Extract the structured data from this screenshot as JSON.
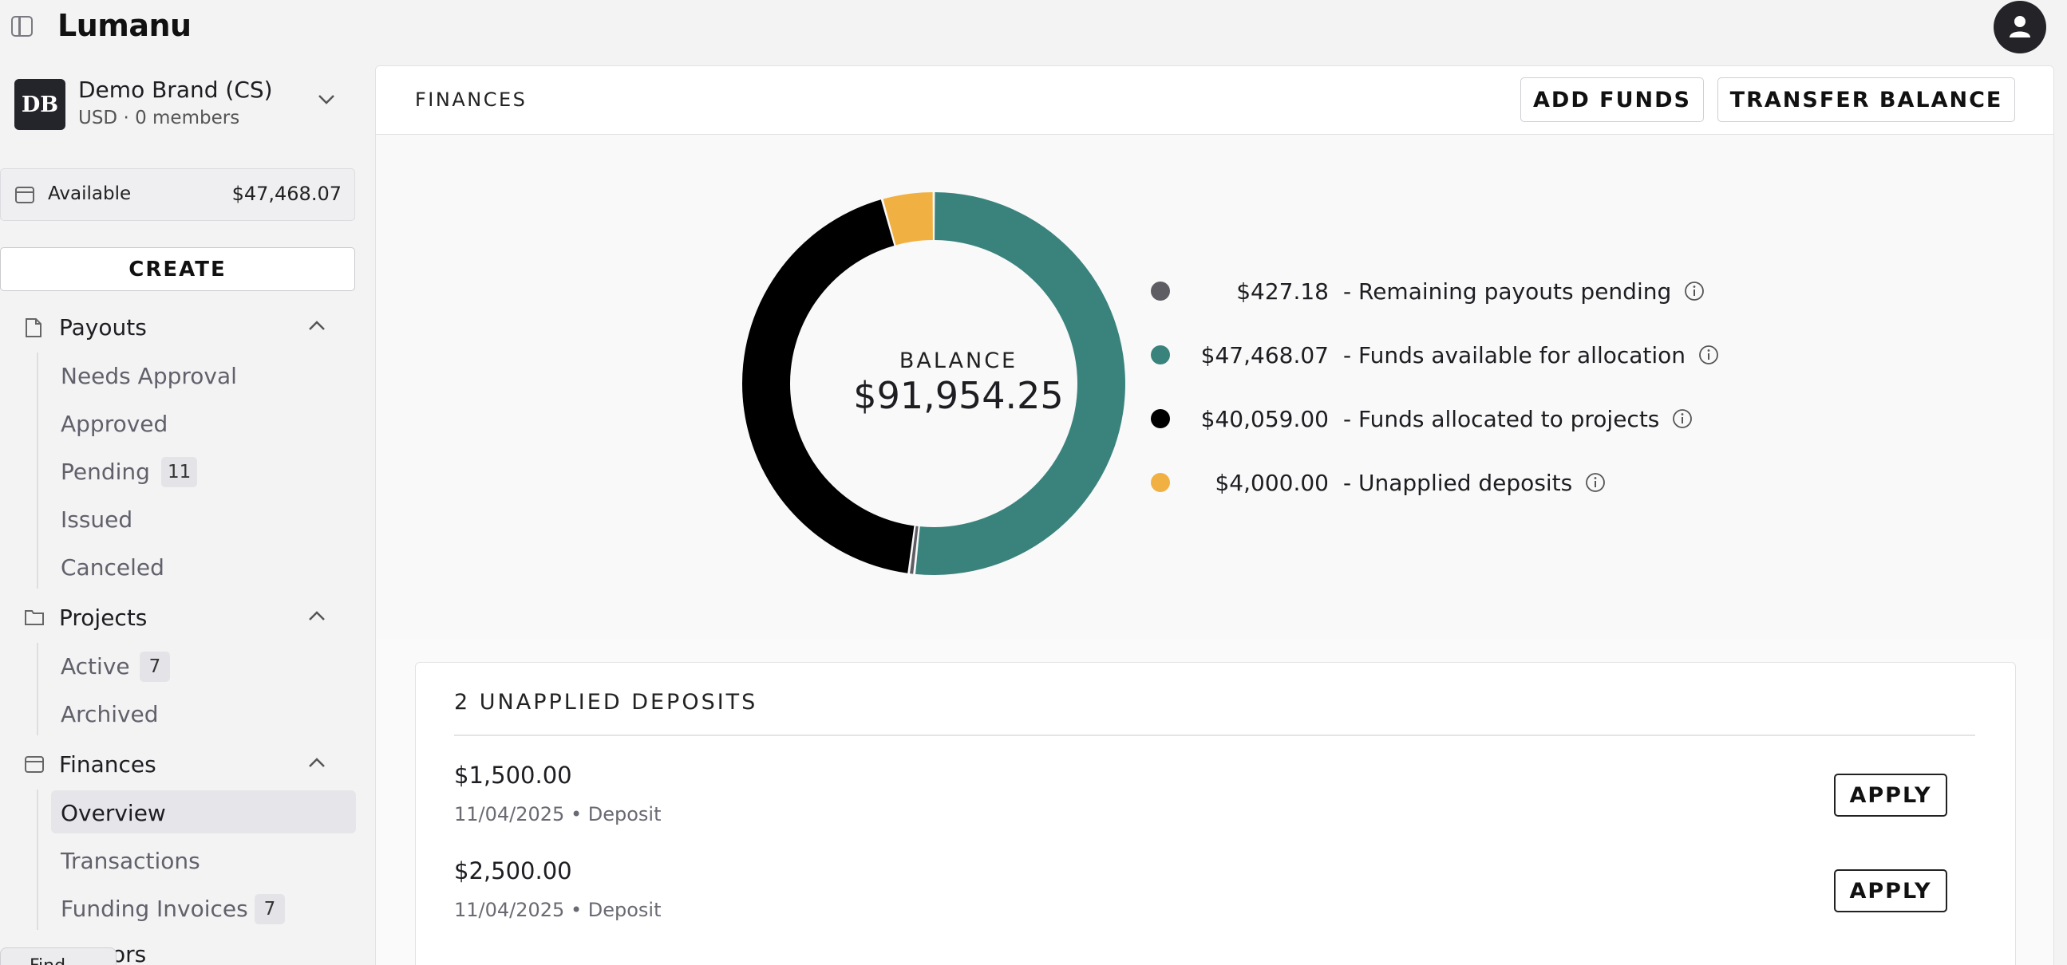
{
  "app": {
    "logo": "Lumanu"
  },
  "brand": {
    "initials": "DB",
    "name": "Demo Brand (CS)",
    "subtitle": "USD · 0 members"
  },
  "balance_summary": {
    "label": "Available",
    "amount": "$47,468.07"
  },
  "create_label": "CREATE",
  "sidebar": {
    "payouts": {
      "label": "Payouts",
      "items": [
        {
          "label": "Needs Approval"
        },
        {
          "label": "Approved"
        },
        {
          "label": "Pending",
          "badge": "11"
        },
        {
          "label": "Issued"
        },
        {
          "label": "Canceled"
        }
      ]
    },
    "projects": {
      "label": "Projects",
      "items": [
        {
          "label": "Active",
          "badge": "7"
        },
        {
          "label": "Archived"
        }
      ]
    },
    "finances": {
      "label": "Finances",
      "items": [
        {
          "label": "Overview",
          "selected": true
        },
        {
          "label": "Transactions"
        },
        {
          "label": "Funding Invoices",
          "badge": "7"
        }
      ]
    },
    "cutoff_item": "ors",
    "cutoff_tooltip": "Find"
  },
  "main": {
    "title": "FINANCES",
    "add_funds_label": "ADD FUNDS",
    "transfer_label": "TRANSFER BALANCE"
  },
  "balance": {
    "label": "BALANCE",
    "value": "$91,954.25",
    "legend": [
      {
        "amount": "$427.18",
        "label": "- Remaining payouts pending",
        "color": "#5e5d63",
        "value": 427.18
      },
      {
        "amount": "$47,468.07",
        "label": "- Funds available for allocation",
        "color": "#3a837d",
        "value": 47468.07
      },
      {
        "amount": "$40,059.00",
        "label": "- Funds allocated to projects",
        "color": "#000000",
        "value": 40059.0
      },
      {
        "amount": "$4,000.00",
        "label": "- Unapplied deposits",
        "color": "#f1b142",
        "value": 4000.0
      }
    ]
  },
  "deposits": {
    "title": "2 UNAPPLIED DEPOSITS",
    "apply_label": "APPLY",
    "items": [
      {
        "amount": "$1,500.00",
        "meta": "11/04/2025 • Deposit"
      },
      {
        "amount": "$2,500.00",
        "meta": "11/04/2025 • Deposit"
      }
    ]
  }
}
